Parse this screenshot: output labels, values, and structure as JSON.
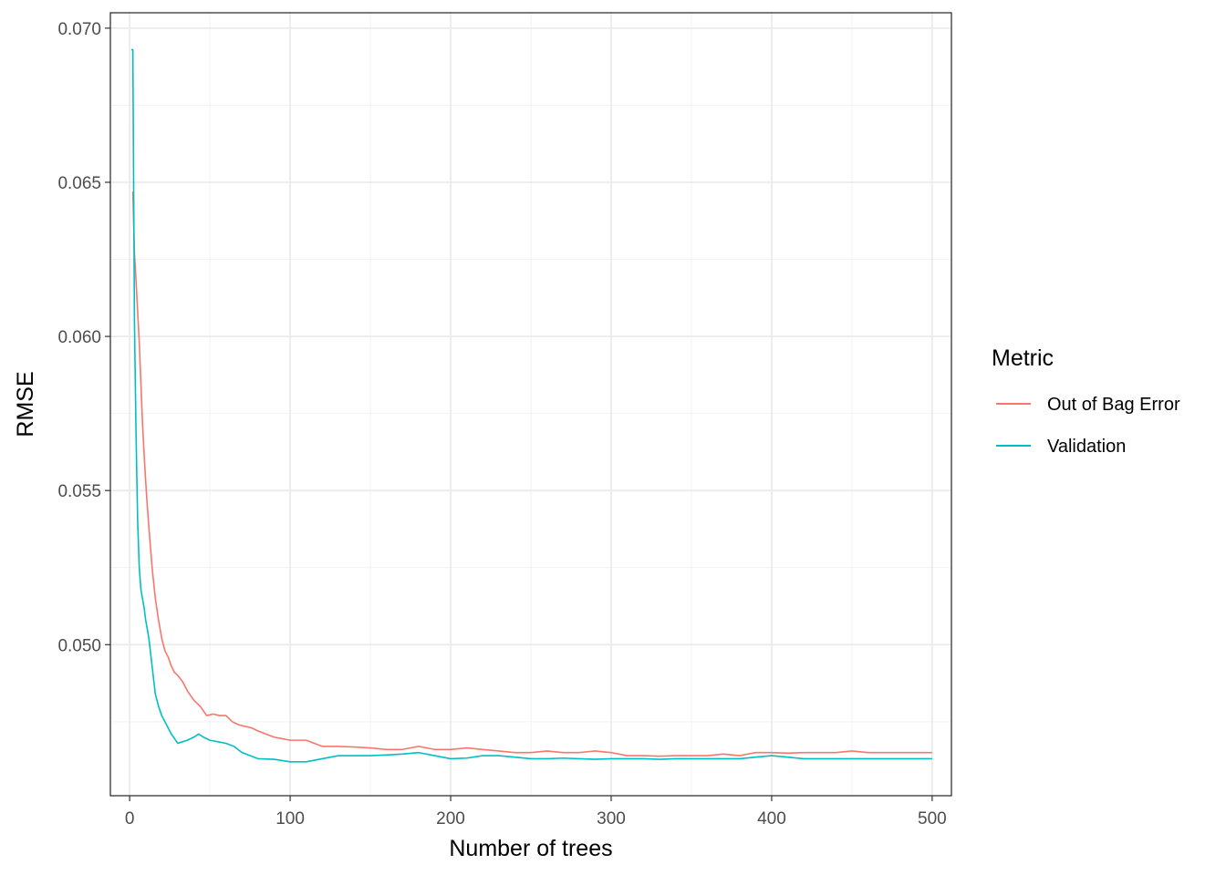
{
  "chart_data": {
    "type": "line",
    "title": "",
    "xlabel": "Number of trees",
    "ylabel": "RMSE",
    "xlim": [
      -12,
      512
    ],
    "ylim": [
      0.0451,
      0.0705
    ],
    "xticks": [
      0,
      100,
      200,
      300,
      400,
      500
    ],
    "xtick_labels": [
      "0",
      "100",
      "200",
      "300",
      "400",
      "500"
    ],
    "yticks": [
      0.05,
      0.055,
      0.06,
      0.065,
      0.07
    ],
    "ytick_labels": [
      "0.050",
      "0.055",
      "0.060",
      "0.065",
      "0.070"
    ],
    "grid": true,
    "legend": {
      "title": "Metric",
      "position": "right"
    },
    "series": [
      {
        "name": "Out of Bag Error",
        "color": "#F8766D",
        "x": [
          2,
          3,
          4,
          5,
          6,
          7,
          8,
          9,
          10,
          11,
          12,
          14,
          16,
          18,
          20,
          22,
          24,
          26,
          28,
          30,
          33,
          36,
          40,
          44,
          48,
          52,
          56,
          60,
          64,
          68,
          72,
          76,
          80,
          85,
          90,
          95,
          100,
          110,
          120,
          130,
          140,
          150,
          160,
          170,
          180,
          190,
          200,
          210,
          220,
          230,
          240,
          250,
          260,
          270,
          280,
          290,
          300,
          310,
          320,
          330,
          340,
          350,
          360,
          370,
          380,
          390,
          400,
          410,
          420,
          430,
          440,
          450,
          460,
          470,
          480,
          490,
          500
        ],
        "values": [
          0.0647,
          0.0627,
          0.0618,
          0.0608,
          0.0598,
          0.0585,
          0.0572,
          0.0562,
          0.0553,
          0.0545,
          0.0538,
          0.0525,
          0.0515,
          0.0508,
          0.0502,
          0.0498,
          0.0496,
          0.0493,
          0.0491,
          0.049,
          0.0488,
          0.0485,
          0.0482,
          0.048,
          0.0477,
          0.04775,
          0.0477,
          0.0477,
          0.0475,
          0.0474,
          0.04735,
          0.0473,
          0.0472,
          0.0471,
          0.047,
          0.04695,
          0.0469,
          0.0469,
          0.0467,
          0.0467,
          0.04668,
          0.04665,
          0.0466,
          0.0466,
          0.0467,
          0.0466,
          0.0466,
          0.04665,
          0.0466,
          0.04655,
          0.0465,
          0.0465,
          0.04655,
          0.0465,
          0.0465,
          0.04655,
          0.0465,
          0.0464,
          0.0464,
          0.04638,
          0.0464,
          0.0464,
          0.0464,
          0.04645,
          0.0464,
          0.0465,
          0.0465,
          0.04648,
          0.0465,
          0.0465,
          0.0465,
          0.04655,
          0.0465,
          0.0465,
          0.0465,
          0.0465,
          0.0465
        ]
      },
      {
        "name": "Validation",
        "color": "#00BFC4",
        "x": [
          1,
          2,
          3,
          4,
          5,
          6,
          7,
          8,
          9,
          10,
          12,
          14,
          16,
          18,
          20,
          22,
          24,
          26,
          28,
          30,
          33,
          36,
          40,
          43,
          46,
          50,
          55,
          60,
          65,
          70,
          75,
          80,
          90,
          100,
          110,
          120,
          130,
          140,
          150,
          160,
          170,
          180,
          190,
          200,
          210,
          220,
          230,
          240,
          250,
          260,
          270,
          280,
          290,
          300,
          310,
          320,
          330,
          340,
          350,
          360,
          370,
          380,
          390,
          400,
          410,
          420,
          430,
          440,
          450,
          460,
          470,
          480,
          490,
          500
        ],
        "values": [
          0.0693,
          0.0693,
          0.0605,
          0.0568,
          0.054,
          0.0525,
          0.0518,
          0.0515,
          0.0512,
          0.0508,
          0.0502,
          0.0493,
          0.0484,
          0.048,
          0.0477,
          0.0475,
          0.0473,
          0.0471,
          0.04695,
          0.0468,
          0.04685,
          0.0469,
          0.047,
          0.0471,
          0.047,
          0.0469,
          0.04685,
          0.0468,
          0.0467,
          0.0465,
          0.0464,
          0.0463,
          0.04628,
          0.0462,
          0.0462,
          0.0463,
          0.0464,
          0.0464,
          0.0464,
          0.04642,
          0.04645,
          0.0465,
          0.0464,
          0.0463,
          0.04632,
          0.0464,
          0.0464,
          0.04635,
          0.0463,
          0.0463,
          0.04632,
          0.0463,
          0.04628,
          0.0463,
          0.0463,
          0.0463,
          0.04628,
          0.0463,
          0.0463,
          0.0463,
          0.0463,
          0.0463,
          0.04635,
          0.0464,
          0.04635,
          0.0463,
          0.0463,
          0.0463,
          0.0463,
          0.0463,
          0.0463,
          0.0463,
          0.0463,
          0.0463
        ]
      }
    ]
  }
}
